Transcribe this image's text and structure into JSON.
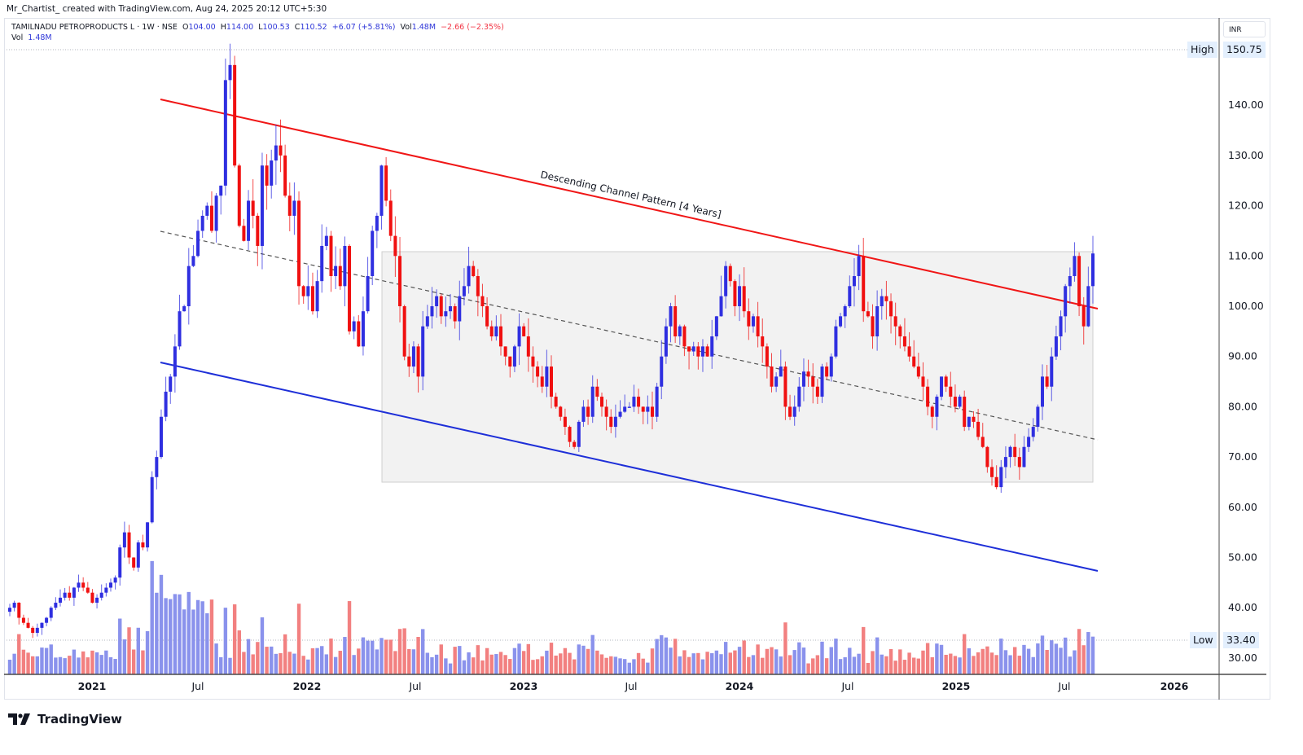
{
  "header": {
    "credit": "Mr_Chartist_ created with TradingView.com, Aug 24, 2025 20:12 UTC+5:30"
  },
  "legend": {
    "symbol": "TAMILNADU PETROPRODUCTS L · 1W · NSE",
    "open_label": "O",
    "open": "104.00",
    "high_label": "H",
    "high": "114.00",
    "low_label": "L",
    "low": "100.53",
    "close_label": "C",
    "close": "110.52",
    "change": "+6.07 (+5.81%)",
    "vol_label": "Vol",
    "vol": "1.48M",
    "vol_change": "−2.66 (−2.35%)",
    "vol2_label": "Vol",
    "vol2": "1.48M"
  },
  "price_axis": {
    "currency": "INR",
    "high_tag": "High",
    "high_value": "150.75",
    "low_tag": "Low",
    "low_value": "33.40",
    "ticks": [
      "140.00",
      "130.00",
      "120.00",
      "110.00",
      "100.00",
      "90.00",
      "80.00",
      "70.00",
      "60.00",
      "50.00",
      "40.00",
      "30.00"
    ]
  },
  "time_axis": {
    "ticks": [
      {
        "label": "2021",
        "bold": true
      },
      {
        "label": "Jul",
        "bold": false
      },
      {
        "label": "2022",
        "bold": true
      },
      {
        "label": "Jul",
        "bold": false
      },
      {
        "label": "2023",
        "bold": true
      },
      {
        "label": "Jul",
        "bold": false
      },
      {
        "label": "2024",
        "bold": true
      },
      {
        "label": "Jul",
        "bold": false
      },
      {
        "label": "2025",
        "bold": true
      },
      {
        "label": "Jul",
        "bold": false
      },
      {
        "label": "2026",
        "bold": true
      }
    ]
  },
  "annotation": {
    "text": "Descending Channel Pattern [4 Years]"
  },
  "branding": {
    "name": "TradingView"
  },
  "colors": {
    "up": "#2f2fe0",
    "down": "#f01010",
    "vol_up": "#8a92ec",
    "vol_down": "#f28080",
    "channel_top": "#f01616",
    "channel_bottom": "#1e2fd8",
    "midline": "#555555",
    "range_box": "#f2f2f2"
  },
  "chart_data": {
    "type": "candlestick",
    "title": "TAMILNADU PETROPRODUCTS L · 1W · NSE",
    "xlabel": "",
    "ylabel": "INR",
    "ylim": [
      28,
      152
    ],
    "x_ticks": [
      "2021",
      "Jul",
      "2022",
      "Jul",
      "2023",
      "Jul",
      "2024",
      "Jul",
      "2025",
      "Jul",
      "2026"
    ],
    "y_ticks": [
      30,
      40,
      50,
      60,
      70,
      80,
      90,
      100,
      110,
      120,
      130,
      140
    ],
    "all_time_high": 150.75,
    "all_time_low": 33.4,
    "last_bar": {
      "open": 104.0,
      "high": 114.0,
      "low": 100.53,
      "close": 110.52,
      "change": 6.07,
      "change_pct": 5.81,
      "volume": "1.48M"
    },
    "annotations": [
      {
        "type": "trendline",
        "name": "channel_top",
        "color": "red",
        "from": {
          "date": "2021-06",
          "price": 141
        },
        "to": {
          "date": "2025-08",
          "price": 99.5
        }
      },
      {
        "type": "trendline",
        "name": "channel_bottom",
        "color": "blue",
        "from": {
          "date": "2021-06",
          "price": 89
        },
        "to": {
          "date": "2025-08",
          "price": 47.5
        }
      },
      {
        "type": "trendline",
        "name": "midline",
        "style": "dashed",
        "from": {
          "date": "2021-06",
          "price": 115
        },
        "to": {
          "date": "2025-08",
          "price": 73.5
        }
      },
      {
        "type": "rectangle",
        "name": "range_box",
        "price_top": 111,
        "price_bottom": 65,
        "from": "2022-05",
        "to": "2025-08"
      },
      {
        "type": "text",
        "text": "Descending Channel Pattern [4 Years]"
      }
    ],
    "closes_weekly": [
      40,
      41,
      38,
      37,
      36,
      35,
      36,
      37,
      38,
      40,
      41,
      42,
      43,
      42,
      44,
      45,
      44,
      43,
      41,
      42,
      43,
      44,
      45,
      46,
      52,
      55,
      50,
      48,
      53,
      52,
      57,
      66,
      70,
      78,
      83,
      86,
      92,
      99,
      100,
      108,
      110,
      115,
      118,
      120,
      115,
      122,
      124,
      145,
      148,
      128,
      116,
      113,
      121,
      118,
      112,
      128,
      124,
      129,
      132,
      130,
      122,
      118,
      121,
      104,
      102,
      104,
      99,
      105,
      112,
      114,
      106,
      108,
      104,
      112,
      95,
      97,
      92,
      99,
      106,
      115,
      118,
      128,
      121,
      114,
      110,
      100,
      90,
      88,
      92,
      86,
      96,
      98,
      100,
      102,
      98,
      99,
      100,
      97,
      102,
      104,
      108,
      106,
      102,
      100,
      96,
      94,
      96,
      92,
      90,
      88,
      92,
      96,
      94,
      90,
      88,
      86,
      84,
      88,
      82,
      80,
      78,
      76,
      73,
      72,
      77,
      80,
      78,
      84,
      82,
      80,
      78,
      76,
      78,
      79,
      80,
      80,
      82,
      80,
      79,
      80,
      78,
      84,
      90,
      96,
      100,
      94,
      96,
      92,
      91,
      92,
      90,
      92,
      90,
      94,
      98,
      102,
      108,
      105,
      100,
      104,
      99,
      96,
      98,
      94,
      92,
      88,
      84,
      86,
      88,
      80,
      78,
      80,
      84,
      87,
      86,
      84,
      82,
      88,
      86,
      90,
      96,
      98,
      100,
      104,
      106,
      110,
      99,
      98,
      94,
      100,
      102,
      101,
      98,
      96,
      94,
      92,
      90,
      88,
      86,
      84,
      80,
      78,
      82,
      86,
      84,
      82,
      80,
      82,
      76,
      78,
      77,
      74,
      72,
      68,
      66,
      64,
      68,
      70,
      72,
      70,
      68,
      72,
      74,
      76,
      80,
      86,
      84,
      90,
      94,
      98,
      104,
      106,
      110,
      100,
      96,
      104,
      110.5
    ],
    "volume_note": "Weekly volume bars colored by candle direction; spikes near early-2021 breakout, mid-2023, early-2024, mid-2024, mid-2025"
  }
}
